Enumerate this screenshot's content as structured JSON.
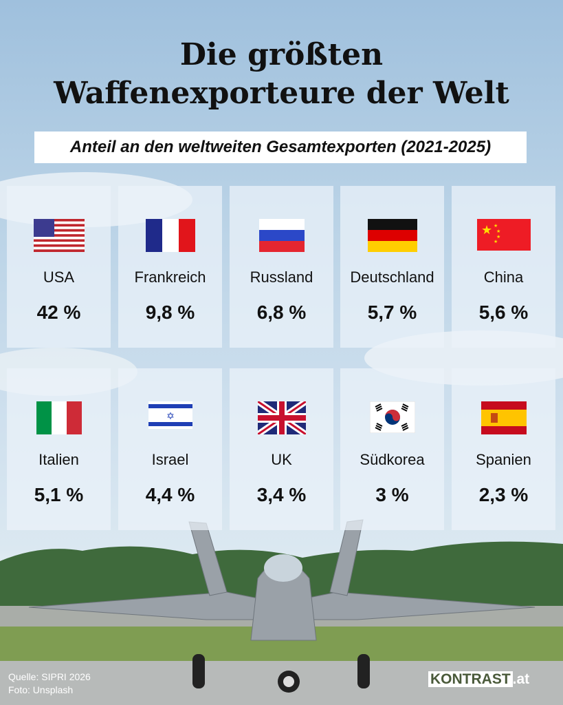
{
  "title_line1": "Die größten",
  "title_line2": "Waffenexporteure der Welt",
  "subtitle": "Anteil an den weltweiten Gesamtexporten (2021-2025)",
  "countries": [
    {
      "name": "USA",
      "value": "42 %",
      "flag": "flag-usa-icon"
    },
    {
      "name": "Frankreich",
      "value": "9,8 %",
      "flag": "flag-france-icon"
    },
    {
      "name": "Russland",
      "value": "6,8 %",
      "flag": "flag-russia-icon"
    },
    {
      "name": "Deutschland",
      "value": "5,7 %",
      "flag": "flag-germany-icon"
    },
    {
      "name": "China",
      "value": "5,6 %",
      "flag": "flag-china-icon"
    },
    {
      "name": "Italien",
      "value": "5,1 %",
      "flag": "flag-italy-icon"
    },
    {
      "name": "Israel",
      "value": "4,4 %",
      "flag": "flag-israel-icon"
    },
    {
      "name": "UK",
      "value": "3,4 %",
      "flag": "flag-uk-icon"
    },
    {
      "name": "Südkorea",
      "value": "3 %",
      "flag": "flag-south-korea-icon"
    },
    {
      "name": "Spanien",
      "value": "2,3 %",
      "flag": "flag-spain-icon"
    }
  ],
  "source": "Quelle: SIPRI 2026",
  "photo": "Foto: Unsplash",
  "logo": {
    "brand": "KONTRAST",
    "suffix": ".at"
  }
}
